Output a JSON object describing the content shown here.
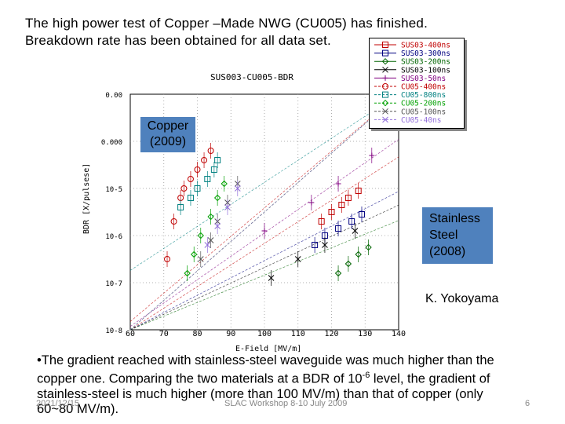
{
  "slide": {
    "title": "The high power test of Copper –Made NWG (CU005) has finished.\nBreakdown rate has been obtained for all data set.",
    "copper_label": [
      "Copper",
      "(2009)"
    ],
    "steel_label": [
      "Stainless",
      "Steel",
      "(2008)"
    ],
    "author": "K. Yokoyama",
    "bullet": {
      "marker": "•",
      "line1": "The gradient reached with stainless-steel waveguide was much higher than the",
      "line2_pre": "copper one.  Comparing the two materials at a BDR of 10",
      "line2_sup": "-6",
      "line2_post": " level, the gradient of",
      "line3": "stainless-steel is much higher (more than 100 MV/m) than that of copper (only",
      "line4": "60~80 MV/m)."
    },
    "footer": {
      "date": "2021/12/15",
      "event": "SLAC Workshop 8-10 July 2009",
      "page": "6"
    },
    "colors": {
      "label_box": "#4f81bd"
    }
  },
  "chart_data": {
    "type": "scatter",
    "title": "SUS003-CU005-BDR",
    "xlabel": "E-Field [MV/m]",
    "ylabel": "BDR [X/pulsese]",
    "xlim": [
      60,
      140
    ],
    "ylim_log10": [
      -8,
      -3
    ],
    "log_y": true,
    "x_ticks": [
      "60",
      "70",
      "80",
      "90",
      "100",
      "110",
      "120",
      "130",
      "140"
    ],
    "y_ticks": [
      "0.00",
      "0.000",
      "10-5",
      "10-6",
      "10-7",
      "10-8"
    ],
    "grid": true,
    "legend_position": "top-right",
    "series": [
      {
        "name": "SUS03-400ns",
        "color": "#c00000",
        "marker": "square",
        "x": [
          117,
          120,
          123,
          125,
          128
        ],
        "y": [
          -5.7,
          -5.5,
          -5.35,
          -5.2,
          -5.05
        ]
      },
      {
        "name": "SUS03-300ns",
        "color": "#000080",
        "marker": "square",
        "x": [
          115,
          118,
          122,
          126,
          129
        ],
        "y": [
          -6.2,
          -6.0,
          -5.85,
          -5.7,
          -5.55
        ]
      },
      {
        "name": "SUS03-200ns",
        "color": "#006400",
        "marker": "diamond",
        "x": [
          122,
          125,
          128,
          131
        ],
        "y": [
          -6.8,
          -6.6,
          -6.4,
          -6.25
        ]
      },
      {
        "name": "SUS03-100ns",
        "color": "#000000",
        "marker": "x",
        "x": [
          102,
          110,
          118,
          127
        ],
        "y": [
          -6.9,
          -6.5,
          -6.2,
          -5.9
        ]
      },
      {
        "name": "SUS03-50ns",
        "color": "#800080",
        "marker": "plus",
        "x": [
          100,
          114,
          122,
          132
        ],
        "y": [
          -5.9,
          -5.3,
          -4.9,
          -4.3
        ]
      },
      {
        "name": "CU05-400ns",
        "color": "#c00000",
        "marker": "circle",
        "x": [
          71,
          73,
          75,
          76,
          78,
          80,
          82,
          84
        ],
        "y": [
          -6.5,
          -5.7,
          -5.2,
          -5.0,
          -4.8,
          -4.6,
          -4.4,
          -4.2
        ]
      },
      {
        "name": "CU05-800ns",
        "color": "#008080",
        "marker": "square",
        "x": [
          75,
          78,
          80,
          83,
          85,
          86
        ],
        "y": [
          -5.4,
          -5.2,
          -5.0,
          -4.8,
          -4.6,
          -4.4
        ]
      },
      {
        "name": "CU05-200ns",
        "color": "#00a000",
        "marker": "diamond",
        "x": [
          77,
          79,
          81,
          84,
          86,
          88
        ],
        "y": [
          -6.8,
          -6.4,
          -6.0,
          -5.6,
          -5.2,
          -4.9
        ]
      },
      {
        "name": "CU05-100ns",
        "color": "#555555",
        "marker": "x",
        "x": [
          81,
          84,
          86,
          89,
          92
        ],
        "y": [
          -6.5,
          -6.1,
          -5.7,
          -5.3,
          -4.9
        ]
      },
      {
        "name": "CU05-40ns",
        "color": "#9370db",
        "marker": "x",
        "x": [
          83,
          86,
          89,
          92
        ],
        "y": [
          -6.2,
          -5.8,
          -5.4,
          -5.0
        ]
      }
    ]
  }
}
